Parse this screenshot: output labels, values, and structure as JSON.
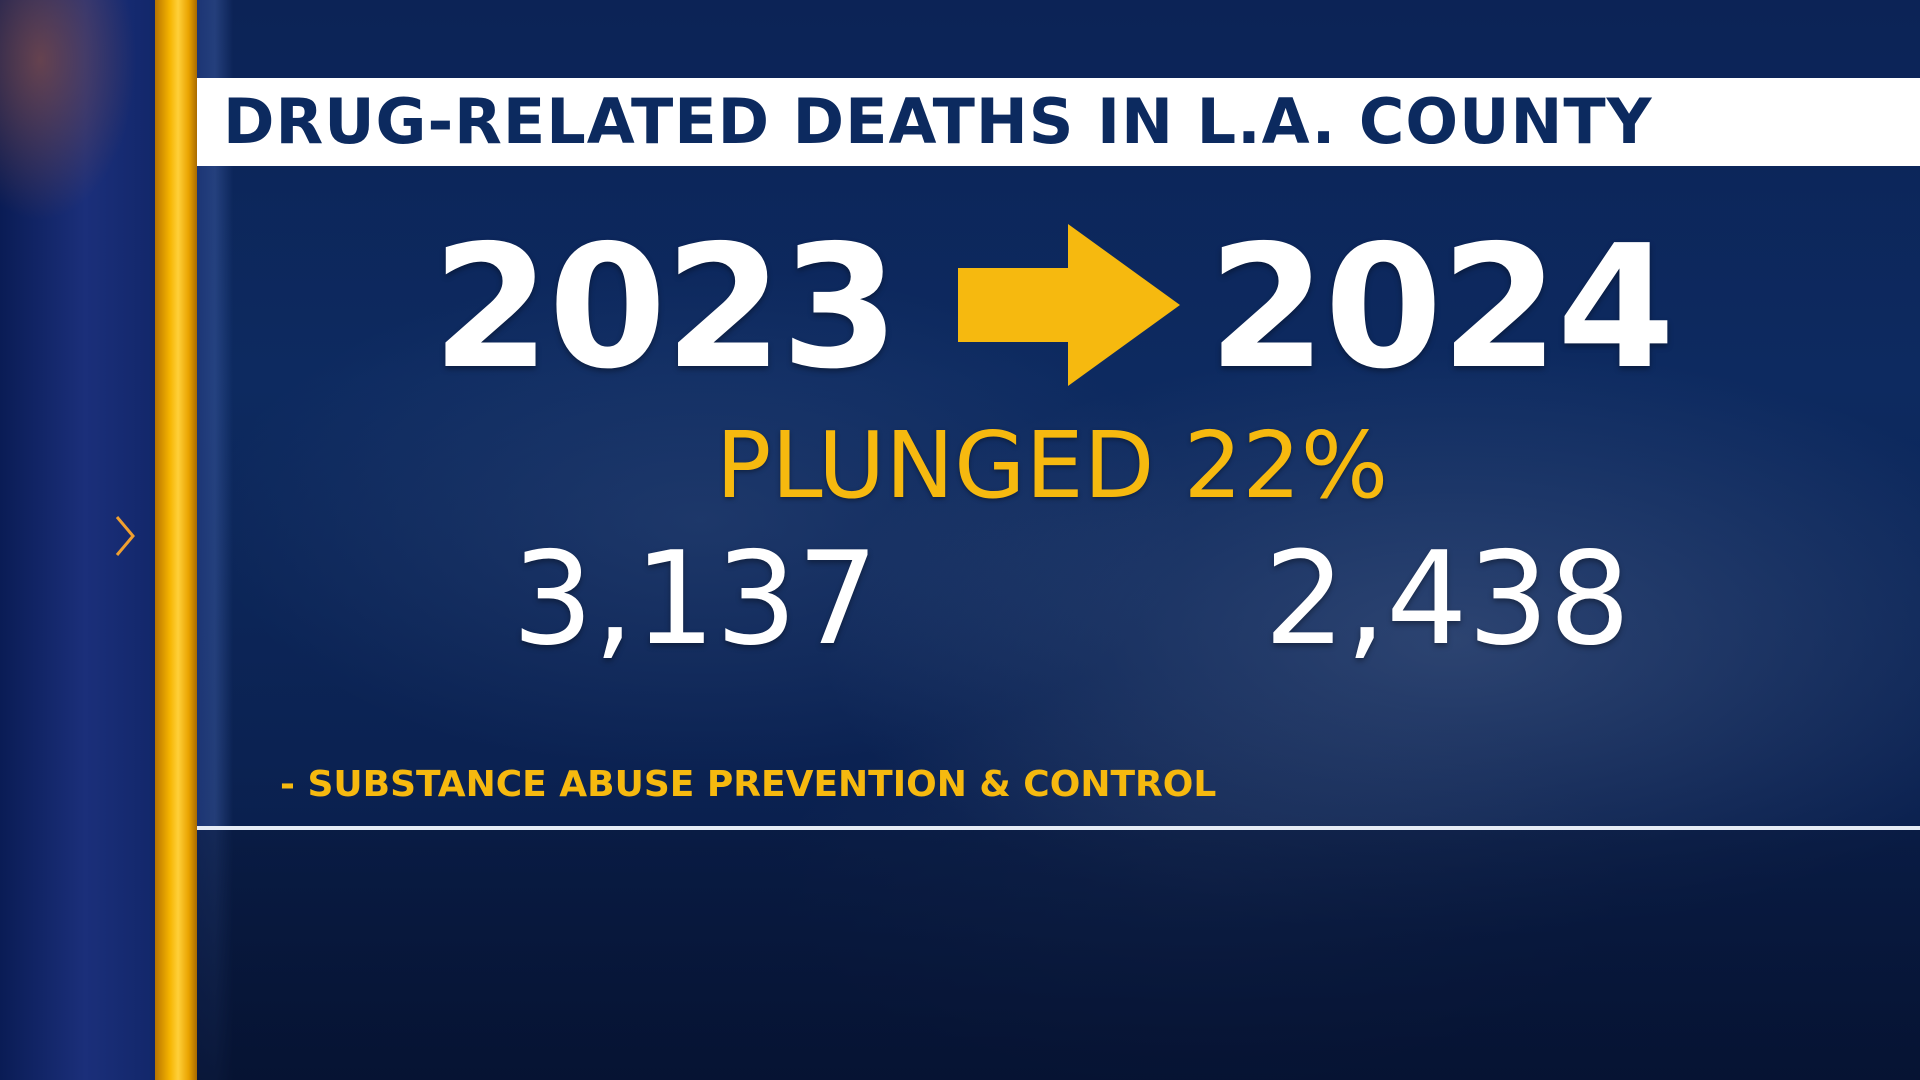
{
  "graphic": {
    "title": "DRUG-RELATED DEATHS IN L.A. COUNTY",
    "year_from": "2023",
    "year_to": "2024",
    "change_text": "PLUNGED 22%",
    "count_from": "3,137",
    "count_to": "2,438",
    "source": "- SUBSTANCE ABUSE PREVENTION & CONTROL"
  },
  "icons": {
    "arrow": "right-arrow-icon",
    "chevron": "chevron-right-icon"
  },
  "colors": {
    "navy": "#0c2a5f",
    "gold": "#f6b90f",
    "white": "#ffffff"
  }
}
